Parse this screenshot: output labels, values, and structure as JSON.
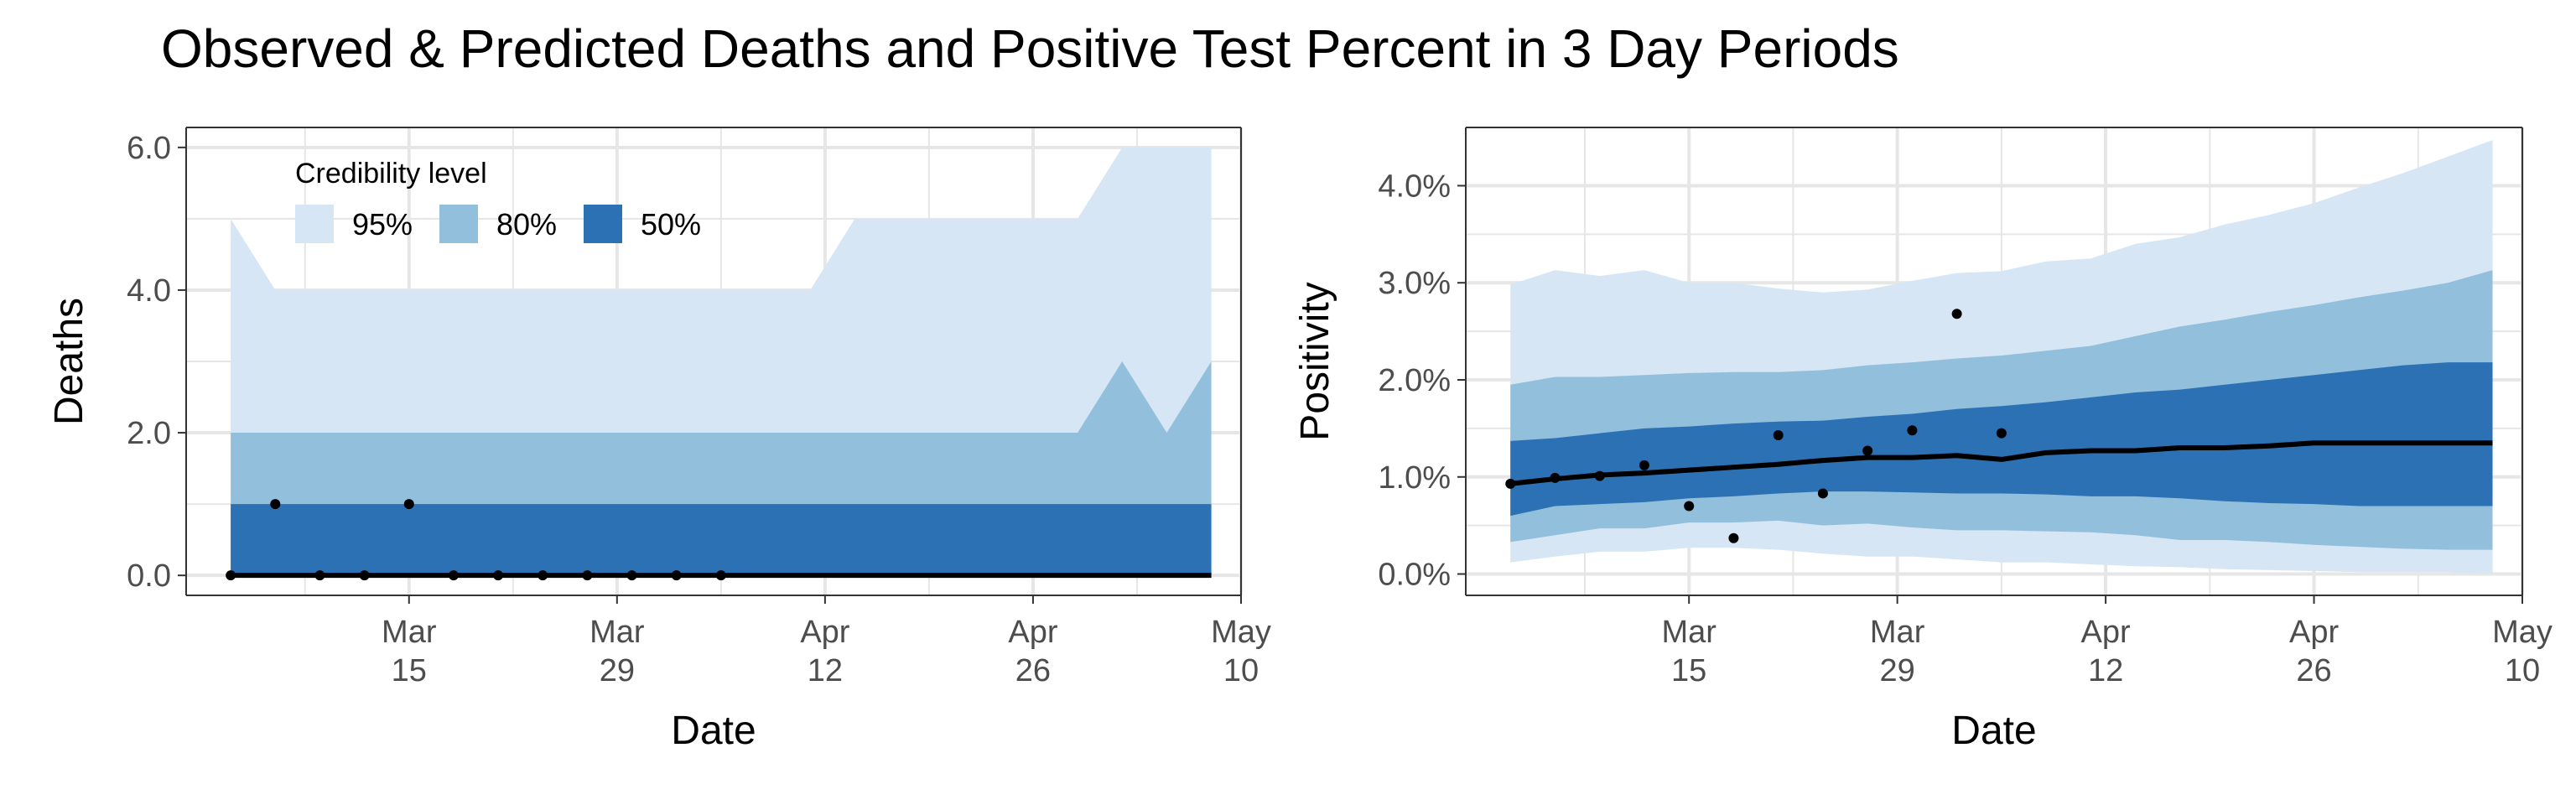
{
  "title": "Observed & Predicted Deaths and Positive Test Percent in 3 Day Periods",
  "colors": {
    "band95": "#d6e6f4",
    "band80": "#92bfdc",
    "band50": "#2b71b4",
    "median": "#000000",
    "points": "#000000",
    "grid": "#e6e6e6",
    "border": "#333333"
  },
  "legend": {
    "title": "Credibility level",
    "items": [
      {
        "label": "95%",
        "color": "#d6e6f4"
      },
      {
        "label": "80%",
        "color": "#92bfdc"
      },
      {
        "label": "50%",
        "color": "#2b71b4"
      }
    ]
  },
  "chart_data": [
    {
      "type": "area",
      "ylabel": "Deaths",
      "xlabel": "Date",
      "grid": true,
      "legend_position": "top-left",
      "xlim": [
        "2020-02-29",
        "2020-05-10"
      ],
      "ylim": [
        -0.28,
        6.28
      ],
      "x_ticks": [
        {
          "date": "2020-03-15",
          "label": [
            "Mar",
            "15"
          ]
        },
        {
          "date": "2020-03-29",
          "label": [
            "Mar",
            "29"
          ]
        },
        {
          "date": "2020-04-12",
          "label": [
            "Apr",
            "12"
          ]
        },
        {
          "date": "2020-04-26",
          "label": [
            "Apr",
            "26"
          ]
        },
        {
          "date": "2020-05-10",
          "label": [
            "May",
            "10"
          ]
        }
      ],
      "y_ticks": [
        {
          "value": 0,
          "label": "0.0"
        },
        {
          "value": 2,
          "label": "2.0"
        },
        {
          "value": 4,
          "label": "4.0"
        },
        {
          "value": 6,
          "label": "6.0"
        }
      ],
      "x": [
        "2020-03-03",
        "2020-03-06",
        "2020-03-09",
        "2020-03-12",
        "2020-03-15",
        "2020-03-18",
        "2020-03-21",
        "2020-03-24",
        "2020-03-27",
        "2020-03-30",
        "2020-04-02",
        "2020-04-05",
        "2020-04-08",
        "2020-04-11",
        "2020-04-14",
        "2020-04-17",
        "2020-04-20",
        "2020-04-23",
        "2020-04-26",
        "2020-04-29",
        "2020-05-02",
        "2020-05-05",
        "2020-05-08"
      ],
      "bands": {
        "95": {
          "lower": [
            0,
            0,
            0,
            0,
            0,
            0,
            0,
            0,
            0,
            0,
            0,
            0,
            0,
            0,
            0,
            0,
            0,
            0,
            0,
            0,
            0,
            0,
            0
          ],
          "upper": [
            5,
            4,
            4,
            4,
            4,
            4,
            4,
            4,
            4,
            4,
            4,
            4,
            4,
            4,
            5,
            5,
            5,
            5,
            5,
            5,
            6,
            6,
            6
          ]
        },
        "80": {
          "lower": [
            0,
            0,
            0,
            0,
            0,
            0,
            0,
            0,
            0,
            0,
            0,
            0,
            0,
            0,
            0,
            0,
            0,
            0,
            0,
            0,
            0,
            0,
            0
          ],
          "upper": [
            2,
            2,
            2,
            2,
            2,
            2,
            2,
            2,
            2,
            2,
            2,
            2,
            2,
            2,
            2,
            2,
            2,
            2,
            2,
            2,
            3,
            2,
            3
          ]
        },
        "50": {
          "lower": [
            0,
            0,
            0,
            0,
            0,
            0,
            0,
            0,
            0,
            0,
            0,
            0,
            0,
            0,
            0,
            0,
            0,
            0,
            0,
            0,
            0,
            0,
            0
          ],
          "upper": [
            1,
            1,
            1,
            1,
            1,
            1,
            1,
            1,
            1,
            1,
            1,
            1,
            1,
            1,
            1,
            1,
            1,
            1,
            1,
            1,
            1,
            1,
            1
          ]
        }
      },
      "median": [
        0,
        0,
        0,
        0,
        0,
        0,
        0,
        0,
        0,
        0,
        0,
        0,
        0,
        0,
        0,
        0,
        0,
        0,
        0,
        0,
        0,
        0,
        0
      ],
      "observed": [
        {
          "x": "2020-03-03",
          "y": 0
        },
        {
          "x": "2020-03-06",
          "y": 1
        },
        {
          "x": "2020-03-09",
          "y": 0
        },
        {
          "x": "2020-03-12",
          "y": 0
        },
        {
          "x": "2020-03-15",
          "y": 1
        },
        {
          "x": "2020-03-18",
          "y": 0
        },
        {
          "x": "2020-03-21",
          "y": 0
        },
        {
          "x": "2020-03-24",
          "y": 0
        },
        {
          "x": "2020-03-27",
          "y": 0
        },
        {
          "x": "2020-03-30",
          "y": 0
        },
        {
          "x": "2020-04-02",
          "y": 0
        },
        {
          "x": "2020-04-05",
          "y": 0
        }
      ]
    },
    {
      "type": "area",
      "ylabel": "Positivity",
      "xlabel": "Date",
      "grid": true,
      "xlim": [
        "2020-02-29",
        "2020-05-10"
      ],
      "ylim": [
        -0.22,
        4.6
      ],
      "x_ticks": [
        {
          "date": "2020-03-15",
          "label": [
            "Mar",
            "15"
          ]
        },
        {
          "date": "2020-03-29",
          "label": [
            "Mar",
            "29"
          ]
        },
        {
          "date": "2020-04-12",
          "label": [
            "Apr",
            "12"
          ]
        },
        {
          "date": "2020-04-26",
          "label": [
            "Apr",
            "26"
          ]
        },
        {
          "date": "2020-05-10",
          "label": [
            "May",
            "10"
          ]
        }
      ],
      "y_ticks": [
        {
          "value": 0,
          "label": "0.0%"
        },
        {
          "value": 1,
          "label": "1.0%"
        },
        {
          "value": 2,
          "label": "2.0%"
        },
        {
          "value": 3,
          "label": "3.0%"
        },
        {
          "value": 4,
          "label": "4.0%"
        }
      ],
      "x": [
        "2020-03-03",
        "2020-03-06",
        "2020-03-09",
        "2020-03-12",
        "2020-03-15",
        "2020-03-18",
        "2020-03-21",
        "2020-03-24",
        "2020-03-27",
        "2020-03-30",
        "2020-04-02",
        "2020-04-05",
        "2020-04-08",
        "2020-04-11",
        "2020-04-14",
        "2020-04-17",
        "2020-04-20",
        "2020-04-23",
        "2020-04-26",
        "2020-04-29",
        "2020-05-02",
        "2020-05-05",
        "2020-05-08"
      ],
      "bands": {
        "95": {
          "lower": [
            0.12,
            0.18,
            0.23,
            0.23,
            0.27,
            0.27,
            0.25,
            0.21,
            0.18,
            0.18,
            0.15,
            0.12,
            0.12,
            0.1,
            0.08,
            0.07,
            0.05,
            0.04,
            0.03,
            0.02,
            0.02,
            0.02,
            0.0
          ],
          "upper": [
            2.98,
            3.13,
            3.07,
            3.13,
            3.0,
            3.0,
            2.94,
            2.9,
            2.93,
            3.02,
            3.1,
            3.12,
            3.22,
            3.25,
            3.4,
            3.47,
            3.6,
            3.7,
            3.82,
            3.98,
            4.13,
            4.3,
            4.47
          ]
        },
        "80": {
          "lower": [
            0.33,
            0.4,
            0.47,
            0.47,
            0.53,
            0.53,
            0.55,
            0.5,
            0.52,
            0.48,
            0.45,
            0.45,
            0.44,
            0.43,
            0.4,
            0.35,
            0.35,
            0.33,
            0.3,
            0.28,
            0.26,
            0.25,
            0.25
          ]
        },
        "50": {
          "lower": [
            0.6,
            0.7,
            0.72,
            0.74,
            0.78,
            0.8,
            0.83,
            0.85,
            0.85,
            0.84,
            0.83,
            0.83,
            0.82,
            0.8,
            0.8,
            0.78,
            0.75,
            0.73,
            0.72,
            0.7,
            0.7,
            0.7,
            0.7
          ],
          "upper": [
            1.37,
            1.4,
            1.45,
            1.5,
            1.52,
            1.55,
            1.57,
            1.58,
            1.62,
            1.65,
            1.7,
            1.73,
            1.77,
            1.82,
            1.87,
            1.9,
            1.95,
            2.0,
            2.05,
            2.1,
            2.15,
            2.18,
            2.18
          ]
        }
      },
      "band80_upper": [
        1.95,
        2.03,
        2.03,
        2.05,
        2.07,
        2.08,
        2.08,
        2.1,
        2.15,
        2.18,
        2.22,
        2.25,
        2.3,
        2.35,
        2.45,
        2.55,
        2.62,
        2.7,
        2.77,
        2.85,
        2.92,
        3.0,
        3.13
      ],
      "median": [
        0.93,
        0.98,
        1.02,
        1.04,
        1.07,
        1.1,
        1.13,
        1.17,
        1.2,
        1.2,
        1.22,
        1.18,
        1.25,
        1.27,
        1.27,
        1.3,
        1.3,
        1.32,
        1.35,
        1.35,
        1.35,
        1.35,
        1.35
      ],
      "observed": [
        {
          "x": "2020-03-03",
          "y": 0.93
        },
        {
          "x": "2020-03-06",
          "y": 0.99
        },
        {
          "x": "2020-03-09",
          "y": 1.01
        },
        {
          "x": "2020-03-12",
          "y": 1.12
        },
        {
          "x": "2020-03-15",
          "y": 0.7
        },
        {
          "x": "2020-03-18",
          "y": 0.37
        },
        {
          "x": "2020-03-21",
          "y": 1.43
        },
        {
          "x": "2020-03-24",
          "y": 0.83
        },
        {
          "x": "2020-03-27",
          "y": 1.27
        },
        {
          "x": "2020-03-30",
          "y": 1.48
        },
        {
          "x": "2020-04-02",
          "y": 2.68
        },
        {
          "x": "2020-04-05",
          "y": 1.45
        }
      ]
    }
  ]
}
